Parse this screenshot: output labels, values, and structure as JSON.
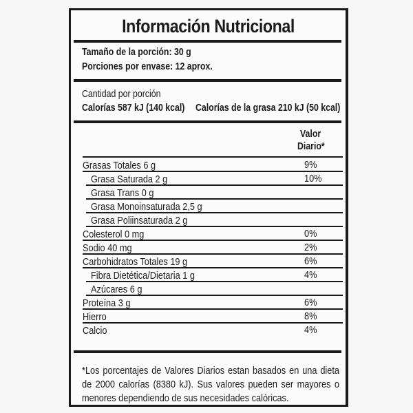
{
  "title": "Información Nutricional",
  "serving": {
    "size": "Tamaño de la porción: 30 g",
    "per_container": "Porciones por envase: 12 aprox."
  },
  "amount": {
    "label": "Cantidad por porción",
    "calories": "Calorías 587 kJ (140 kcal)",
    "fat_calories": "Calorías de la grasa 210 kJ (50 kcal)"
  },
  "dv_header": {
    "line1": "Valor",
    "line2": "Diario*"
  },
  "rows": [
    {
      "name": "Grasas Totales 6 g",
      "dv": "9%",
      "sub": false
    },
    {
      "name": "Grasa Saturada 2  g",
      "dv": "10%",
      "sub": true
    },
    {
      "name": "Grasa Trans 0 g",
      "dv": "",
      "sub": true
    },
    {
      "name": "Grasa Monoinsaturada 2,5 g",
      "dv": "",
      "sub": true
    },
    {
      "name": "Grasa Poliinsaturada 2 g",
      "dv": "",
      "sub": true
    },
    {
      "name": "Colesterol 0 mg",
      "dv": "0%",
      "sub": false
    },
    {
      "name": "Sodio 40 mg",
      "dv": "2%",
      "sub": false
    },
    {
      "name": "Carbohidratos Totales 19 g",
      "dv": "6%",
      "sub": false
    },
    {
      "name": "Fibra Dietética/Dietaria 1 g",
      "dv": "4%",
      "sub": true
    },
    {
      "name": "Azúcares 6 g",
      "dv": "",
      "sub": true
    },
    {
      "name": "Proteína 3 g",
      "dv": "6%",
      "sub": false
    },
    {
      "name": "Hierro",
      "dv": "8%",
      "sub": false
    },
    {
      "name": "Calcio",
      "dv": "4%",
      "sub": false
    }
  ],
  "footnote": "*Los porcentajes de Valores Diarios  estan basados en una dieta de 2000 calorías (8380 kJ). Sus valores pueden ser mayores o menores dependiendo de sus necesidades calóricas."
}
